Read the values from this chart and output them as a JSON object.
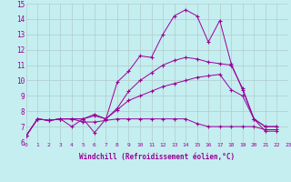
{
  "xlabel": "Windchill (Refroidissement éolien,°C)",
  "xlim": [
    0,
    23
  ],
  "ylim": [
    6,
    15
  ],
  "xticks": [
    0,
    1,
    2,
    3,
    4,
    5,
    6,
    7,
    8,
    9,
    10,
    11,
    12,
    13,
    14,
    15,
    16,
    17,
    18,
    19,
    20,
    21,
    22,
    23
  ],
  "yticks": [
    6,
    7,
    8,
    9,
    10,
    11,
    12,
    13,
    14,
    15
  ],
  "background_color": "#c5eef0",
  "line_color": "#990099",
  "grid_color": "#b0cccc",
  "series": [
    [
      6.4,
      7.5,
      7.4,
      7.5,
      7.0,
      7.5,
      6.6,
      7.5,
      9.9,
      10.6,
      11.6,
      11.5,
      13.0,
      14.2,
      14.6,
      14.2,
      12.5,
      13.9,
      11.1,
      9.4,
      7.5,
      6.7,
      6.7
    ],
    [
      6.4,
      7.5,
      7.4,
      7.5,
      7.5,
      7.5,
      7.8,
      7.5,
      8.2,
      9.3,
      10.0,
      10.5,
      11.0,
      11.3,
      11.5,
      11.4,
      11.2,
      11.1,
      11.0,
      9.5,
      7.5,
      7.0,
      7.0
    ],
    [
      6.4,
      7.5,
      7.4,
      7.5,
      7.5,
      7.3,
      7.3,
      7.4,
      7.5,
      7.5,
      7.5,
      7.5,
      7.5,
      7.5,
      7.5,
      7.2,
      7.0,
      7.0,
      7.0,
      7.0,
      7.0,
      6.8,
      6.8
    ],
    [
      6.4,
      7.5,
      7.4,
      7.5,
      7.5,
      7.5,
      7.7,
      7.5,
      8.1,
      8.7,
      9.0,
      9.3,
      9.6,
      9.8,
      10.0,
      10.2,
      10.3,
      10.4,
      9.4,
      9.0,
      7.5,
      7.0,
      7.0
    ]
  ]
}
